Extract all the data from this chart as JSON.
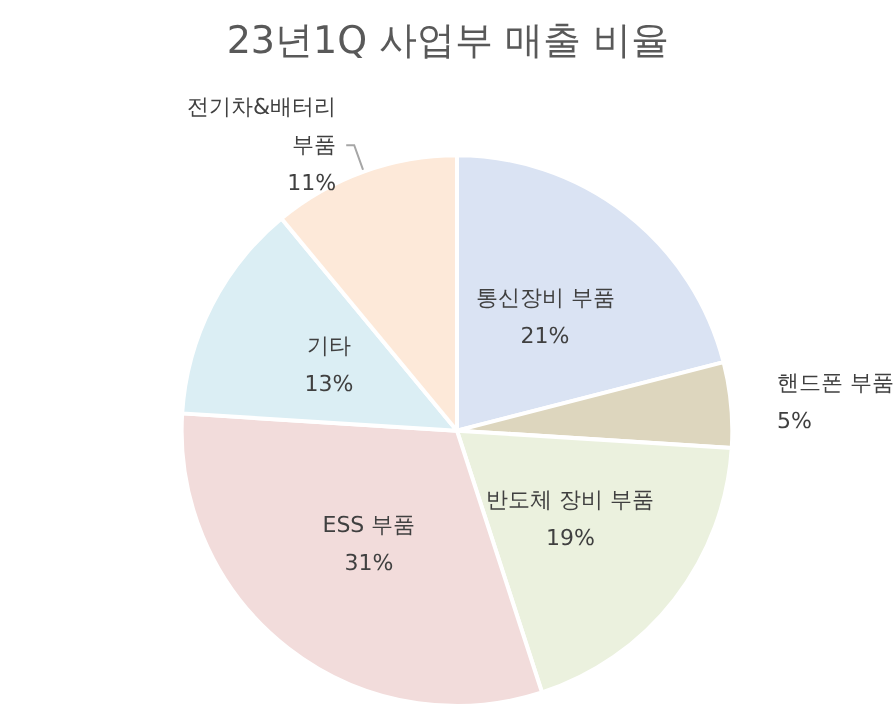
{
  "chart_data": {
    "type": "pie",
    "title": "23년1Q 사업부 매출 비율",
    "categories": [
      "통신장비 부품",
      "핸드폰 부품",
      "반도체 장비 부품",
      "ESS 부품",
      "기타",
      "전기차&배터리 부품"
    ],
    "values": [
      21,
      5,
      19,
      31,
      13,
      11
    ],
    "value_labels": [
      "21%",
      "5%",
      "19%",
      "31%",
      "13%",
      "11%"
    ],
    "colors": [
      "#dae3f3",
      "#ddd6be",
      "#ebf1de",
      "#f2dcdb",
      "#dbeef4",
      "#fde9d9"
    ],
    "legend": false
  }
}
